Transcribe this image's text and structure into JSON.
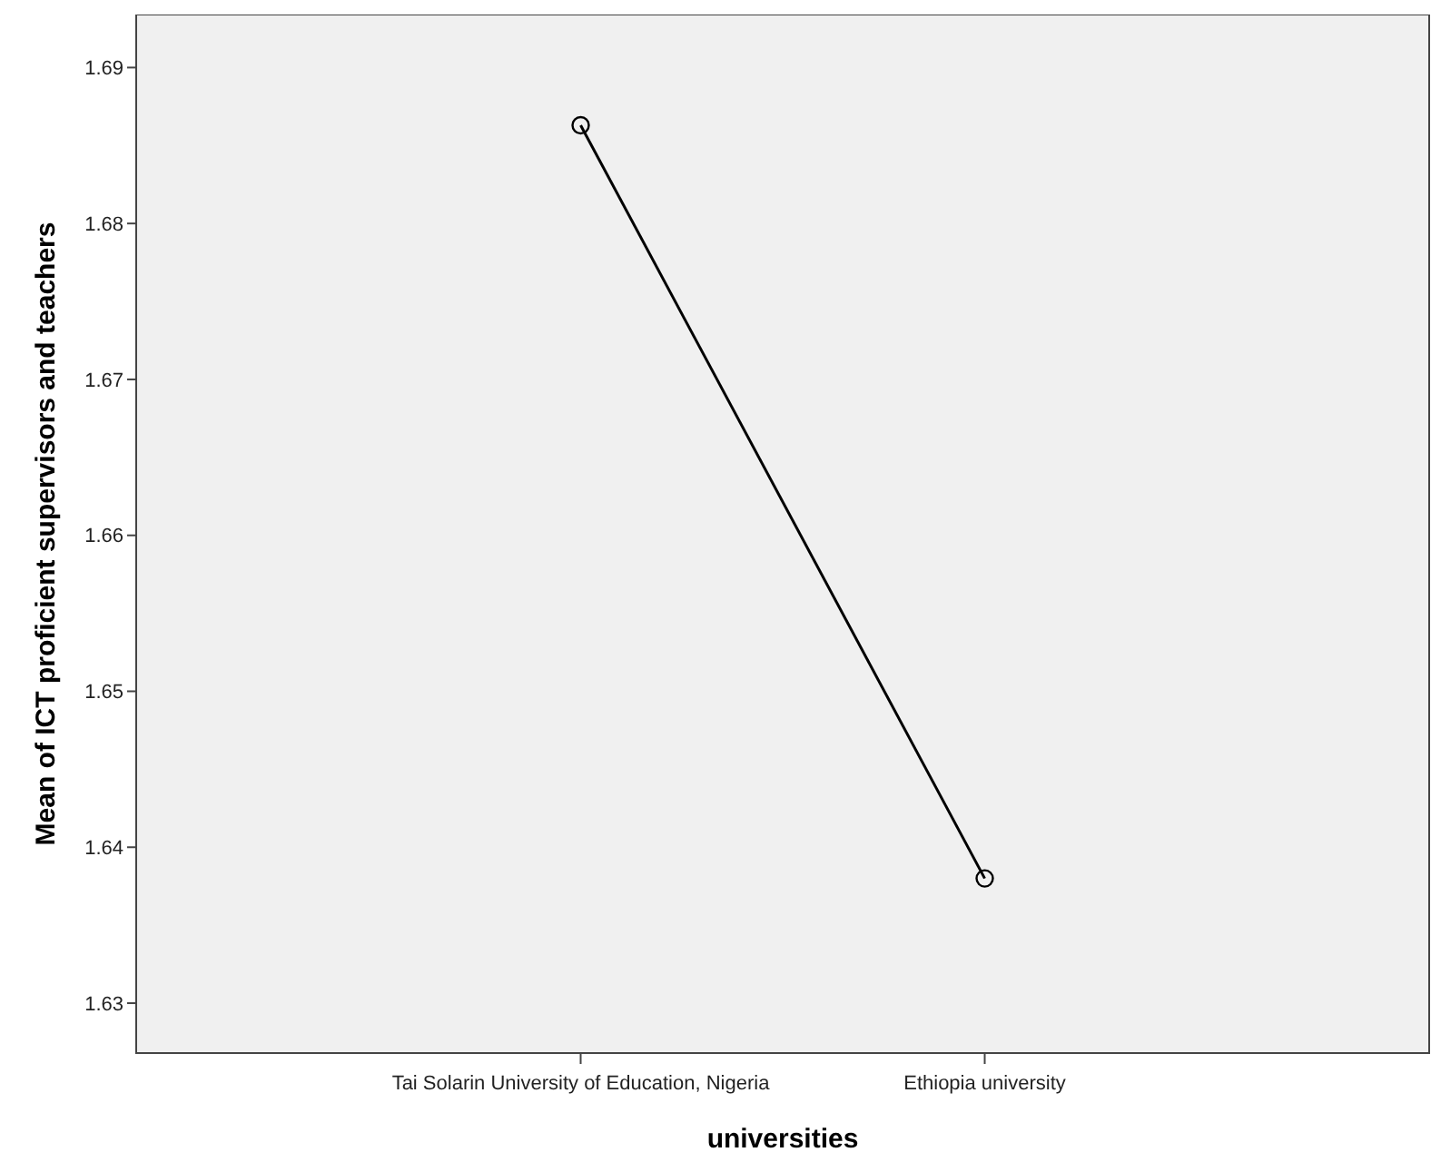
{
  "chart_data": {
    "type": "line",
    "xlabel": "universities",
    "ylabel": "Mean of ICT proficient supervisors and teachers",
    "categories": [
      "Tai Solarin University of Education, Nigeria",
      "Ethiopia university"
    ],
    "series": [
      {
        "color": "#000000",
        "values": [
          1.6863,
          1.638
        ]
      }
    ],
    "ylim": [
      1.6268,
      1.6934
    ],
    "yticks": [
      1.63,
      1.64,
      1.65,
      1.66,
      1.67,
      1.68,
      1.69
    ],
    "grid": false,
    "marker": "circle",
    "line_style": "solid"
  }
}
